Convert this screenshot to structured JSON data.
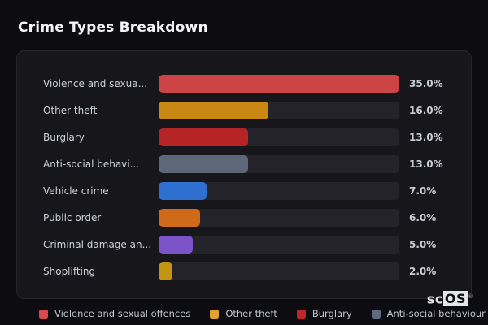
{
  "page": {
    "title": "Crime Types Breakdown"
  },
  "colors": {
    "background": "#0d0d11",
    "panel": "#17171b",
    "track": "#232329",
    "label_text": "#ccd1d8",
    "value_text": "#c9cdd3",
    "title_text": "#f2f4f6"
  },
  "watermark": {
    "prefix": "sc",
    "boxed": "OS",
    "registered": "®"
  },
  "chart_data": {
    "type": "bar",
    "orientation": "horizontal",
    "title": "Crime Types Breakdown",
    "max_value": 35,
    "grid": false,
    "legend_position": "bottom",
    "bars": [
      {
        "label": "Violence and sexua...",
        "value": 35.0,
        "value_label": "35.0%",
        "color": "#cc4446"
      },
      {
        "label": "Other theft",
        "value": 16.0,
        "value_label": "16.0%",
        "color": "#c98713"
      },
      {
        "label": "Burglary",
        "value": 13.0,
        "value_label": "13.0%",
        "color": "#b62426"
      },
      {
        "label": "Anti-social behavi...",
        "value": 13.0,
        "value_label": "13.0%",
        "color": "#5d6779"
      },
      {
        "label": "Vehicle crime",
        "value": 7.0,
        "value_label": "7.0%",
        "color": "#2e6fd0"
      },
      {
        "label": "Public order",
        "value": 6.0,
        "value_label": "6.0%",
        "color": "#cf6a1a"
      },
      {
        "label": "Criminal damage an...",
        "value": 5.0,
        "value_label": "5.0%",
        "color": "#7b52c8"
      },
      {
        "label": "Shoplifting",
        "value": 2.0,
        "value_label": "2.0%",
        "color": "#c29410"
      }
    ],
    "legend": [
      {
        "label": "Violence and sexual offences",
        "color": "#d94a4c"
      },
      {
        "label": "Other theft",
        "color": "#e2a32c"
      },
      {
        "label": "Burglary",
        "color": "#c0262a"
      },
      {
        "label": "Anti-social behaviour",
        "color": "#5d6a80"
      }
    ]
  }
}
